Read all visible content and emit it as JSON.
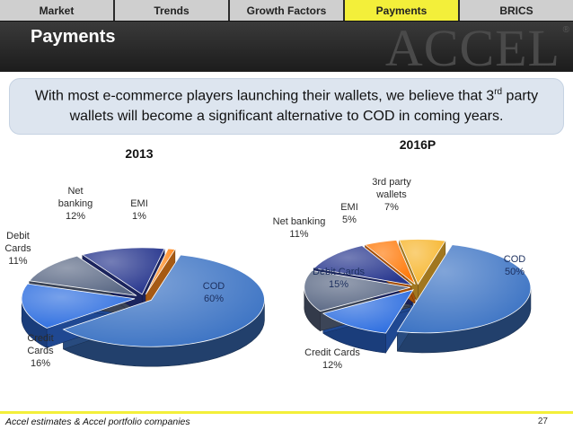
{
  "nav": {
    "tabs": [
      {
        "label": "Market",
        "active": false
      },
      {
        "label": "Trends",
        "active": false
      },
      {
        "label": "Growth Factors",
        "active": false
      },
      {
        "label": "Payments",
        "active": true
      },
      {
        "label": "BRICS",
        "active": false
      }
    ]
  },
  "header": {
    "title": "Payments",
    "logo_text": "ACCEL",
    "logo_mark": "®"
  },
  "callout": {
    "text_before": "With most e-commerce players launching their wallets, we believe that 3",
    "sup": "rd",
    "text_after": " party wallets will become a significant alternative to COD in coming years."
  },
  "chart_data": [
    {
      "type": "pie",
      "title": "2013",
      "slices": [
        {
          "name": "COD",
          "value": 60,
          "label": "COD",
          "pct_label": "60%",
          "color": "#3d74c4"
        },
        {
          "name": "Credit Cards",
          "value": 16,
          "label": "Credit Cards",
          "pct_label": "16%",
          "color": "#2f6fe0"
        },
        {
          "name": "Debit Cards",
          "value": 11,
          "label": "Debit Cards",
          "pct_label": "11%",
          "color": "#5c6a86"
        },
        {
          "name": "Net banking",
          "value": 12,
          "label": "Net banking",
          "pct_label": "12%",
          "color": "#29388f"
        },
        {
          "name": "EMI",
          "value": 1,
          "label": "EMI",
          "pct_label": "1%",
          "color": "#ff8a1f"
        }
      ]
    },
    {
      "type": "pie",
      "title": "2016P",
      "slices": [
        {
          "name": "COD",
          "value": 50,
          "label": "COD",
          "pct_label": "50%",
          "color": "#3d74c4"
        },
        {
          "name": "Credit Cards",
          "value": 12,
          "label": "Credit Cards",
          "pct_label": "12%",
          "color": "#2f6fe0"
        },
        {
          "name": "Debit Cards",
          "value": 15,
          "label": "Debit Cards",
          "pct_label": "15%",
          "color": "#5c6a86"
        },
        {
          "name": "Net banking",
          "value": 11,
          "label": "Net banking",
          "pct_label": "11%",
          "color": "#29388f"
        },
        {
          "name": "EMI",
          "value": 5,
          "label": "EMI",
          "pct_label": "5%",
          "color": "#ff7a0a"
        },
        {
          "name": "3rd party wallets",
          "value": 7,
          "label": "3rd party wallets",
          "pct_label": "7%",
          "color": "#f7b731"
        }
      ]
    }
  ],
  "footer": {
    "source": "Accel estimates & Accel portfolio companies",
    "page": "27"
  }
}
